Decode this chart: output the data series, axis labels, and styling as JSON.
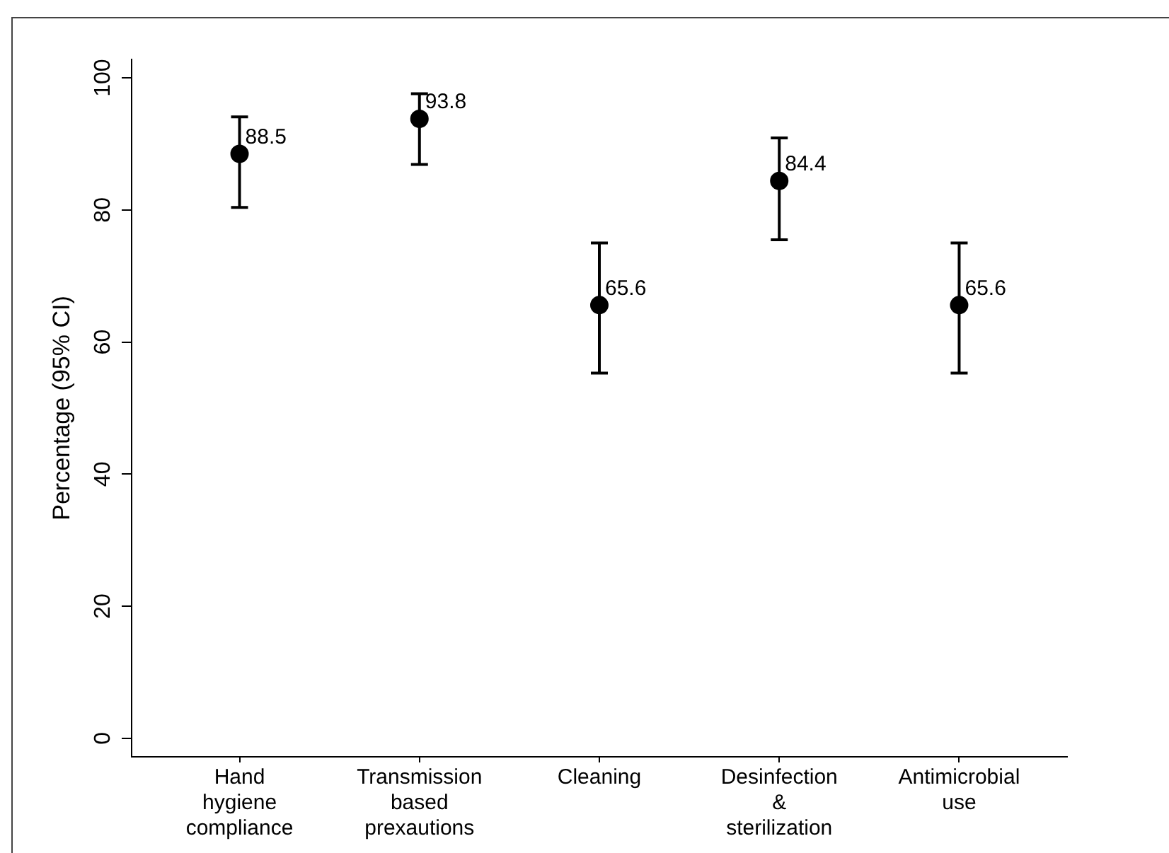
{
  "chart_data": {
    "type": "scatter",
    "ylabel": "Percentage (95% CI)",
    "categories": [
      "Hand hygiene compliance",
      "Transmission based prexautions",
      "Cleaning",
      "Desinfection & sterilization",
      "Antimicrobial use"
    ],
    "values": [
      88.5,
      93.8,
      65.6,
      84.4,
      65.6
    ],
    "errors": [
      [
        80.4,
        94.1
      ],
      [
        86.9,
        97.6
      ],
      [
        55.3,
        75.0
      ],
      [
        75.5,
        90.9
      ],
      [
        55.3,
        75.0
      ]
    ],
    "color": "#000000",
    "marker": "circle",
    "data_labels": true,
    "ylim": [
      -2.8,
      102.8
    ],
    "yticks": [
      0,
      20,
      40,
      60,
      80,
      100
    ],
    "grid": false,
    "legend": false
  }
}
